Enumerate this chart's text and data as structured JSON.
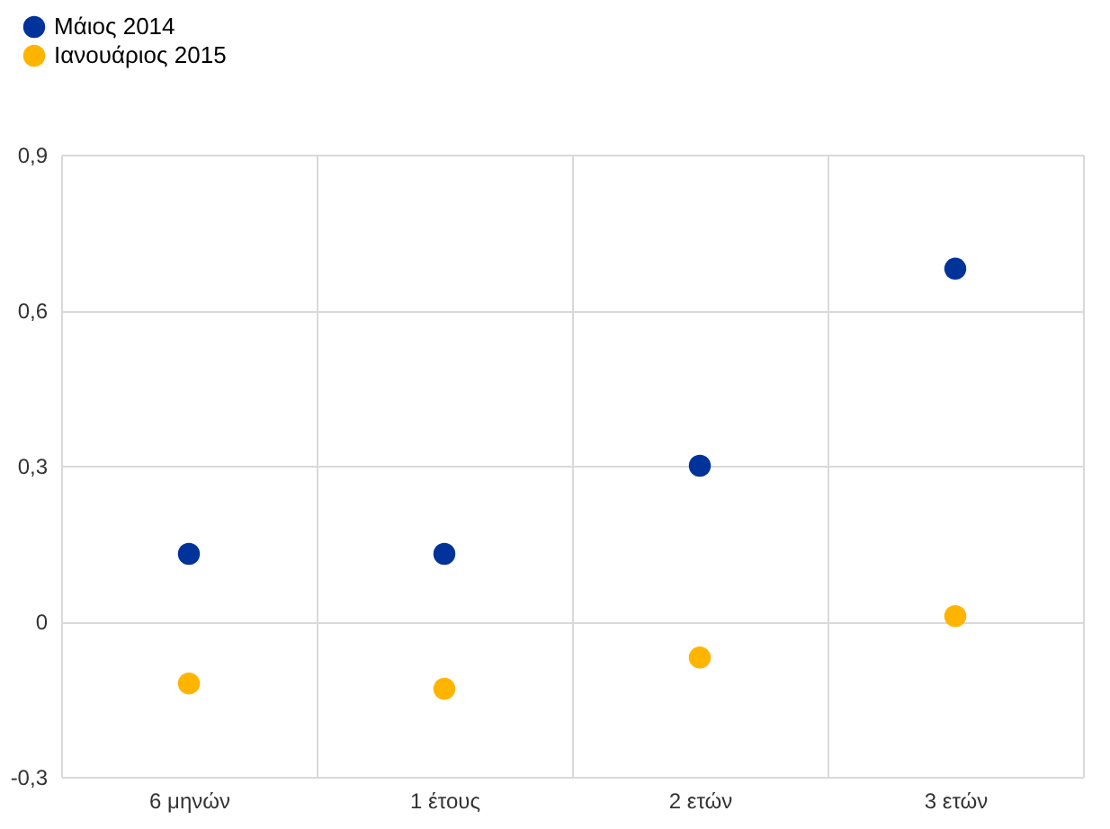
{
  "chart_data": {
    "type": "scatter",
    "categories": [
      "6 μηνών",
      "1 έτους",
      "2 ετών",
      "3 ετών"
    ],
    "series": [
      {
        "name": "Μάιος 2014",
        "color": "#003399",
        "values": [
          0.13,
          0.13,
          0.3,
          0.68
        ]
      },
      {
        "name": "Ιανουάριος 2015",
        "color": "#ffb400",
        "values": [
          -0.12,
          -0.13,
          -0.07,
          0.01
        ]
      }
    ],
    "ylim": [
      -0.3,
      0.9
    ],
    "yticks": [
      {
        "value": -0.3,
        "label": "-0,3"
      },
      {
        "value": 0,
        "label": "0"
      },
      {
        "value": 0.3,
        "label": "0,3"
      },
      {
        "value": 0.6,
        "label": "0,6"
      },
      {
        "value": 0.9,
        "label": "0,9"
      }
    ],
    "grid": true,
    "legend": "top left",
    "marker": "circle"
  }
}
